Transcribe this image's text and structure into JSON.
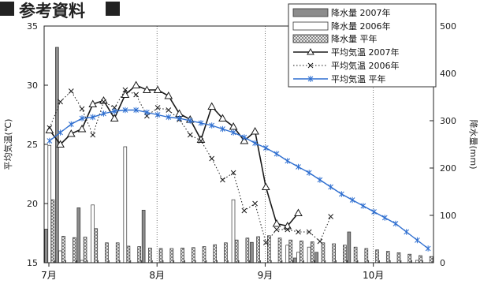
{
  "chart_data": {
    "type": "bar+line",
    "title": "参考資料",
    "ylabel_left": "平均気温(℃)",
    "ylabel_right": "降水量(mm)",
    "ylim_left": [
      15,
      35
    ],
    "yticks_left": [
      15,
      20,
      25,
      30,
      35
    ],
    "ylim_right": [
      0,
      500
    ],
    "yticks_right": [
      0,
      100,
      200,
      300,
      400,
      500
    ],
    "months": [
      "7月",
      "8月",
      "9月",
      "10月"
    ],
    "periods": 36,
    "month_start_period": [
      1,
      11,
      21,
      31
    ],
    "colors": {
      "bar_2007": "#8c8c8c",
      "bar_2006": "#ffffff",
      "bar_normal_hatch": "#6e6e6e",
      "line_2007": "#1a1a1a",
      "line_2006": "#1a1a1a",
      "line_normal": "#2f6fd0"
    },
    "bar_series": [
      {
        "name": "降水量 2007年",
        "style": "solid",
        "values": [
          71,
          455,
          0,
          116,
          0,
          0,
          0,
          0,
          0,
          111,
          0,
          0,
          0,
          0,
          0,
          0,
          0,
          0,
          0,
          43,
          0,
          0,
          0,
          10,
          0,
          22,
          0,
          0,
          65,
          0,
          0,
          0,
          0,
          0,
          0,
          0
        ]
      },
      {
        "name": "降水量 2006年",
        "style": "outline",
        "values": [
          248,
          25,
          0,
          5,
          122,
          0,
          0,
          245,
          0,
          0,
          0,
          0,
          0,
          0,
          0,
          0,
          0,
          133,
          0,
          0,
          0,
          0,
          37,
          22,
          33,
          0,
          0,
          0,
          0,
          0,
          0,
          0,
          0,
          0,
          5,
          0
        ]
      },
      {
        "name": "降水量 平年",
        "style": "hatch",
        "values": [
          133,
          56,
          53,
          54,
          72,
          42,
          42,
          35,
          34,
          31,
          30,
          30,
          31,
          32,
          34,
          38,
          42,
          48,
          52,
          55,
          57,
          52,
          48,
          46,
          44,
          42,
          40,
          37,
          33,
          30,
          27,
          24,
          21,
          18,
          15,
          13
        ]
      }
    ],
    "line_series": [
      {
        "name": "平均気温 2007年",
        "marker": "triangle",
        "dash": "solid",
        "values": [
          26.2,
          25.0,
          25.9,
          26.3,
          28.4,
          28.7,
          27.2,
          29.2,
          30.0,
          29.6,
          29.6,
          29.1,
          27.6,
          27.1,
          25.4,
          28.2,
          27.2,
          26.5,
          25.3,
          26.1,
          21.4,
          18.3,
          18.1,
          19.2
        ]
      },
      {
        "name": "平均気温 2006年",
        "marker": "cross",
        "dash": "dotted",
        "values": [
          26.4,
          28.6,
          29.5,
          28.0,
          25.8,
          28.6,
          28.1,
          29.6,
          29.2,
          27.4,
          28.1,
          27.9,
          27.1,
          25.8,
          25.3,
          23.8,
          22.0,
          22.6,
          19.4,
          20.0,
          16.7,
          17.8,
          17.8,
          17.6,
          17.6,
          16.8,
          18.9
        ]
      },
      {
        "name": "平均気温 平年",
        "marker": "asterisk",
        "dash": "solid",
        "values": [
          25.3,
          26.0,
          26.7,
          27.2,
          27.3,
          27.6,
          27.8,
          27.9,
          27.9,
          27.7,
          27.5,
          27.3,
          27.2,
          27.0,
          26.8,
          26.6,
          26.3,
          26.0,
          25.6,
          25.1,
          24.7,
          24.2,
          23.6,
          23.1,
          22.6,
          22.0,
          21.4,
          20.8,
          20.3,
          19.8,
          19.3,
          18.8,
          18.3,
          17.6,
          16.9,
          16.2
        ]
      }
    ]
  }
}
